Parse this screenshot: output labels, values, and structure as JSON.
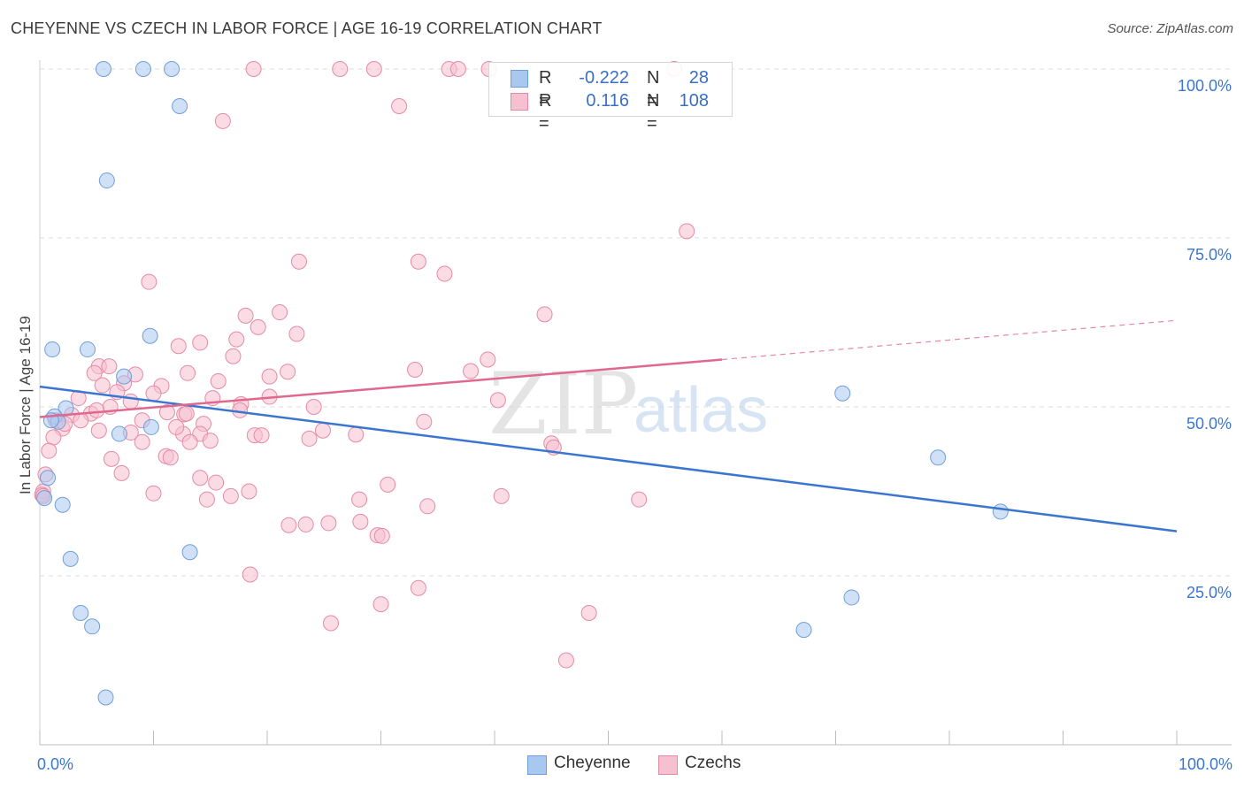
{
  "header": {
    "title": "CHEYENNE VS CZECH IN LABOR FORCE | AGE 16-19 CORRELATION CHART",
    "source": "Source: ZipAtlas.com"
  },
  "watermark": {
    "zip": "ZIP",
    "atlas": "atlas"
  },
  "legend": {
    "rows": [
      {
        "r_label": "R =",
        "r_value": "-0.222",
        "n_label": "N =",
        "n_value": "28",
        "color": "#a9c8f0",
        "border": "#6f9fd8"
      },
      {
        "r_label": "R =",
        "r_value": "0.116",
        "n_label": "N =",
        "n_value": "108",
        "color": "#f7c0d0",
        "border": "#e58aa6"
      }
    ]
  },
  "bottom_legend": [
    {
      "label": "Cheyenne",
      "color": "#a9c8f0",
      "border": "#6f9fd8"
    },
    {
      "label": "Czechs",
      "color": "#f7c0d0",
      "border": "#e58aa6"
    }
  ],
  "chart_data": {
    "type": "scatter",
    "title": "CHEYENNE VS CZECH IN LABOR FORCE | AGE 16-19 CORRELATION CHART",
    "xlabel": "",
    "ylabel": "In Labor Force | Age 16-19",
    "xlim": [
      0,
      100
    ],
    "ylim": [
      0,
      100
    ],
    "x_tick_labels": [
      {
        "value": 0,
        "label": "0.0%"
      },
      {
        "value": 100,
        "label": "100.0%"
      }
    ],
    "y_tick_labels": [
      {
        "value": 25,
        "label": "25.0%"
      },
      {
        "value": 50,
        "label": "50.0%"
      },
      {
        "value": 75,
        "label": "75.0%"
      },
      {
        "value": 100,
        "label": "100.0%"
      }
    ],
    "series": [
      {
        "name": "Cheyenne",
        "color": "#a9c8f0",
        "stroke": "#6f9fd8",
        "line_color": "#3a76d0",
        "trend": {
          "x": [
            0,
            100
          ],
          "y": [
            53.0,
            31.6
          ],
          "dashed_from": null
        },
        "points": [
          [
            5.6,
            100
          ],
          [
            9.1,
            100
          ],
          [
            11.6,
            100
          ],
          [
            12.3,
            94.5
          ],
          [
            5.9,
            83.5
          ],
          [
            9.7,
            60.5
          ],
          [
            1.1,
            58.5
          ],
          [
            4.2,
            58.5
          ],
          [
            7.4,
            54.5
          ],
          [
            2.3,
            49.8
          ],
          [
            1.3,
            48.6
          ],
          [
            1.6,
            47.8
          ],
          [
            9.8,
            47.0
          ],
          [
            7.0,
            46.0
          ],
          [
            0.7,
            39.5
          ],
          [
            2.0,
            35.5
          ],
          [
            2.7,
            27.5
          ],
          [
            13.2,
            28.5
          ],
          [
            3.6,
            19.5
          ],
          [
            4.6,
            17.5
          ],
          [
            5.8,
            7.0
          ],
          [
            70.6,
            52.0
          ],
          [
            79.0,
            42.5
          ],
          [
            84.5,
            34.5
          ],
          [
            71.4,
            21.8
          ],
          [
            67.2,
            17.0
          ],
          [
            0.4,
            36.5
          ],
          [
            1.0,
            48.0
          ]
        ]
      },
      {
        "name": "Czechs",
        "color": "#f7c0d0",
        "stroke": "#e58aa6",
        "line_color": "#e0688f",
        "trend": {
          "x": [
            0,
            60,
            100
          ],
          "y": [
            48.5,
            57.0,
            62.8
          ],
          "dashed_from": 60
        },
        "points": [
          [
            18.8,
            100
          ],
          [
            26.4,
            100
          ],
          [
            29.4,
            100
          ],
          [
            36.0,
            100
          ],
          [
            36.8,
            100
          ],
          [
            39.5,
            100
          ],
          [
            55.8,
            100
          ],
          [
            31.6,
            94.5
          ],
          [
            16.1,
            92.3
          ],
          [
            56.9,
            76.0
          ],
          [
            22.8,
            71.5
          ],
          [
            33.3,
            71.5
          ],
          [
            35.6,
            69.7
          ],
          [
            9.6,
            68.5
          ],
          [
            21.1,
            64.0
          ],
          [
            44.4,
            63.7
          ],
          [
            18.1,
            63.5
          ],
          [
            19.2,
            61.8
          ],
          [
            22.6,
            60.8
          ],
          [
            17.3,
            60.0
          ],
          [
            12.2,
            59.0
          ],
          [
            14.1,
            59.5
          ],
          [
            17.0,
            57.5
          ],
          [
            39.4,
            57.0
          ],
          [
            5.2,
            56.0
          ],
          [
            6.1,
            56.0
          ],
          [
            33.0,
            55.5
          ],
          [
            37.9,
            55.3
          ],
          [
            13.0,
            55.0
          ],
          [
            8.4,
            54.8
          ],
          [
            20.2,
            54.5
          ],
          [
            21.8,
            55.2
          ],
          [
            4.8,
            55.0
          ],
          [
            15.7,
            53.8
          ],
          [
            7.4,
            53.5
          ],
          [
            5.5,
            53.2
          ],
          [
            10.7,
            53.1
          ],
          [
            6.8,
            52.2
          ],
          [
            10.0,
            52.0
          ],
          [
            15.2,
            51.3
          ],
          [
            3.4,
            51.3
          ],
          [
            8.0,
            50.8
          ],
          [
            20.2,
            51.5
          ],
          [
            40.3,
            51.0
          ],
          [
            17.7,
            50.4
          ],
          [
            6.2,
            50.0
          ],
          [
            24.1,
            50.0
          ],
          [
            17.6,
            49.5
          ],
          [
            11.2,
            49.2
          ],
          [
            12.7,
            48.9
          ],
          [
            2.8,
            48.8
          ],
          [
            4.5,
            49.0
          ],
          [
            12.9,
            49.0
          ],
          [
            5.0,
            49.5
          ],
          [
            3.6,
            48.0
          ],
          [
            1.4,
            48.0
          ],
          [
            9.0,
            48.0
          ],
          [
            14.4,
            47.5
          ],
          [
            33.8,
            47.8
          ],
          [
            2.0,
            46.8
          ],
          [
            24.9,
            46.5
          ],
          [
            12.6,
            46.0
          ],
          [
            14.1,
            46.0
          ],
          [
            8.0,
            46.2
          ],
          [
            18.9,
            45.8
          ],
          [
            19.5,
            45.8
          ],
          [
            27.8,
            45.9
          ],
          [
            1.2,
            45.5
          ],
          [
            23.7,
            45.3
          ],
          [
            9.0,
            44.8
          ],
          [
            13.2,
            44.8
          ],
          [
            45.0,
            44.6
          ],
          [
            45.2,
            44.0
          ],
          [
            11.1,
            42.7
          ],
          [
            11.5,
            42.5
          ],
          [
            6.3,
            42.3
          ],
          [
            0.8,
            43.5
          ],
          [
            7.2,
            40.2
          ],
          [
            14.1,
            39.5
          ],
          [
            0.5,
            40.0
          ],
          [
            15.5,
            38.8
          ],
          [
            30.6,
            38.5
          ],
          [
            18.4,
            37.5
          ],
          [
            0.3,
            37.5
          ],
          [
            10.0,
            37.2
          ],
          [
            16.8,
            36.8
          ],
          [
            14.7,
            36.3
          ],
          [
            28.1,
            36.3
          ],
          [
            40.6,
            36.8
          ],
          [
            52.7,
            36.3
          ],
          [
            34.1,
            35.3
          ],
          [
            21.9,
            32.5
          ],
          [
            23.4,
            32.6
          ],
          [
            25.4,
            32.8
          ],
          [
            28.2,
            33.0
          ],
          [
            29.7,
            31.0
          ],
          [
            30.1,
            30.9
          ],
          [
            18.5,
            25.2
          ],
          [
            33.3,
            23.2
          ],
          [
            30.0,
            20.8
          ],
          [
            25.6,
            18.0
          ],
          [
            48.3,
            19.5
          ],
          [
            46.3,
            12.5
          ],
          [
            0.2,
            37.0
          ],
          [
            0.3,
            36.8
          ],
          [
            2.2,
            47.5
          ],
          [
            12.0,
            47.0
          ],
          [
            5.2,
            46.5
          ],
          [
            15.0,
            45.0
          ]
        ]
      }
    ]
  }
}
